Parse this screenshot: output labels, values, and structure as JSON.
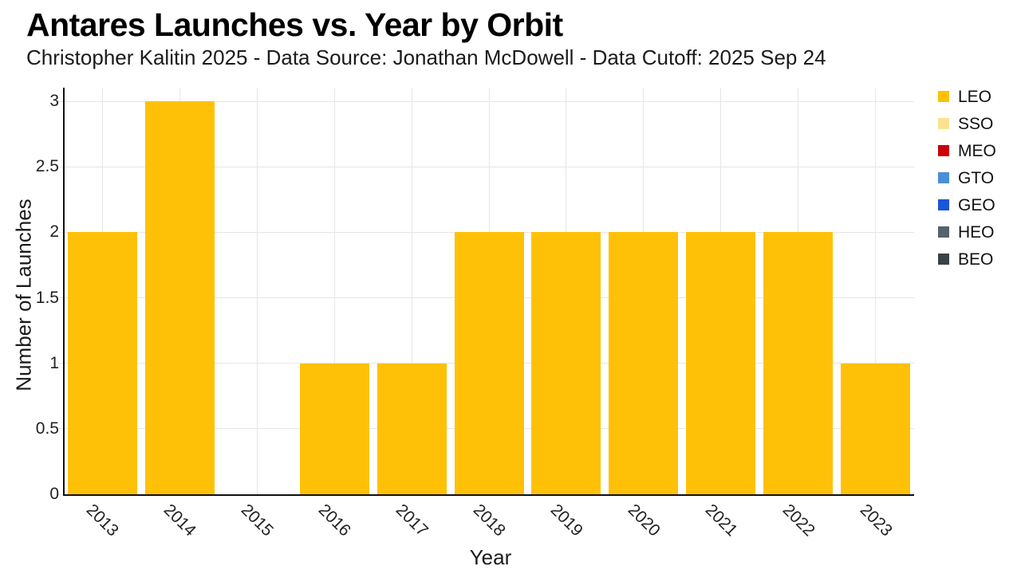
{
  "chart_data": {
    "type": "bar",
    "title": "Antares Launches vs. Year by Orbit",
    "subtitle": "Christopher Kalitin 2025 - Data Source: Jonathan McDowell - Data Cutoff: 2025 Sep 24",
    "xlabel": "Year",
    "ylabel": "Number of Launches",
    "categories": [
      "2013",
      "2014",
      "2015",
      "2016",
      "2017",
      "2018",
      "2019",
      "2020",
      "2021",
      "2022",
      "2023"
    ],
    "series": [
      {
        "name": "LEO",
        "color": "#FFC107",
        "values": [
          2,
          3,
          0,
          1,
          1,
          2,
          2,
          2,
          2,
          2,
          1
        ]
      },
      {
        "name": "SSO",
        "color": "#FDE18E",
        "values": [
          0,
          0,
          0,
          0,
          0,
          0,
          0,
          0,
          0,
          0,
          0
        ]
      },
      {
        "name": "MEO",
        "color": "#CC0000",
        "values": [
          0,
          0,
          0,
          0,
          0,
          0,
          0,
          0,
          0,
          0,
          0
        ]
      },
      {
        "name": "GTO",
        "color": "#4A8FD3",
        "values": [
          0,
          0,
          0,
          0,
          0,
          0,
          0,
          0,
          0,
          0,
          0
        ]
      },
      {
        "name": "GEO",
        "color": "#1A56DB",
        "values": [
          0,
          0,
          0,
          0,
          0,
          0,
          0,
          0,
          0,
          0,
          0
        ]
      },
      {
        "name": "HEO",
        "color": "#55626E",
        "values": [
          0,
          0,
          0,
          0,
          0,
          0,
          0,
          0,
          0,
          0,
          0
        ]
      },
      {
        "name": "BEO",
        "color": "#3A4148",
        "values": [
          0,
          0,
          0,
          0,
          0,
          0,
          0,
          0,
          0,
          0,
          0
        ]
      }
    ],
    "ylim": [
      0,
      3
    ],
    "yticks": [
      "0",
      "0.5",
      "1",
      "1.5",
      "2",
      "2.5",
      "3"
    ],
    "grid": true,
    "legend_position": "right"
  }
}
